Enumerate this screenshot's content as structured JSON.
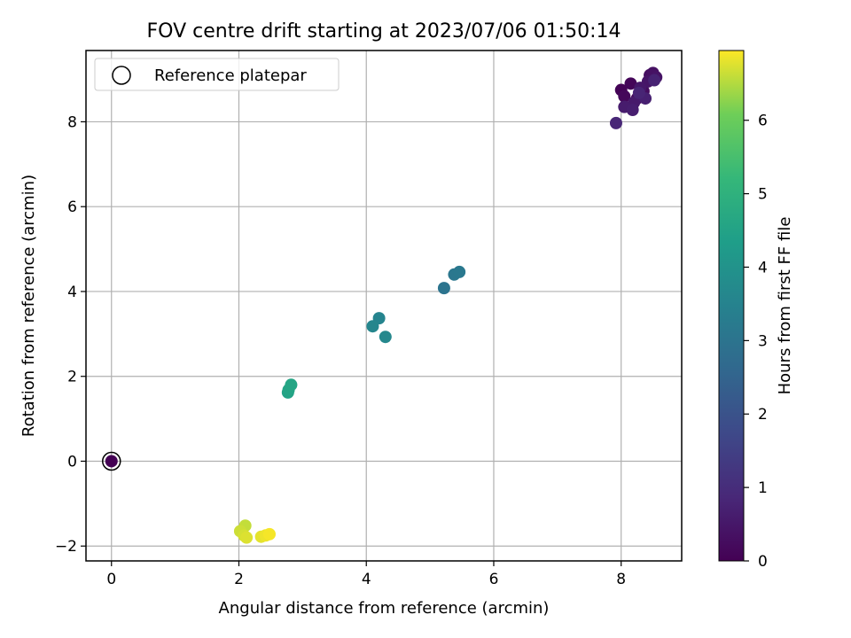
{
  "chart_data": {
    "type": "scatter",
    "title": "FOV centre drift starting at 2023/07/06 01:50:14",
    "xlabel": "Angular distance from reference (arcmin)",
    "ylabel": "Rotation from reference (arcmin)",
    "xlim": [
      -0.4,
      8.95
    ],
    "ylim": [
      -2.35,
      9.68
    ],
    "xticks": [
      0,
      2,
      4,
      6,
      8
    ],
    "yticks": [
      -2,
      0,
      2,
      4,
      6,
      8
    ],
    "grid": true,
    "legend": {
      "placement": "top-left",
      "entries": [
        "Reference platepar"
      ]
    },
    "reference_point": {
      "x": 0,
      "y": 0
    },
    "colorbar": {
      "label": "Hours from first FF file",
      "colormap": "viridis",
      "range": [
        0,
        6.95
      ],
      "ticks": [
        0,
        1,
        2,
        3,
        4,
        5,
        6
      ]
    },
    "points": [
      {
        "x": 0.0,
        "y": 0.0,
        "c": 0.0
      },
      {
        "x": 8.0,
        "y": 8.75,
        "c": 0.05
      },
      {
        "x": 8.15,
        "y": 8.9,
        "c": 0.1
      },
      {
        "x": 8.05,
        "y": 8.6,
        "c": 0.15
      },
      {
        "x": 8.25,
        "y": 8.55,
        "c": 0.2
      },
      {
        "x": 8.35,
        "y": 8.72,
        "c": 0.25
      },
      {
        "x": 8.45,
        "y": 9.1,
        "c": 0.3
      },
      {
        "x": 8.5,
        "y": 9.15,
        "c": 0.35
      },
      {
        "x": 8.55,
        "y": 9.05,
        "c": 0.4
      },
      {
        "x": 8.42,
        "y": 8.95,
        "c": 0.45
      },
      {
        "x": 8.3,
        "y": 8.8,
        "c": 0.5
      },
      {
        "x": 8.2,
        "y": 8.45,
        "c": 0.55
      },
      {
        "x": 8.05,
        "y": 8.35,
        "c": 0.6
      },
      {
        "x": 8.18,
        "y": 8.28,
        "c": 0.65
      },
      {
        "x": 8.38,
        "y": 8.55,
        "c": 0.7
      },
      {
        "x": 8.52,
        "y": 8.98,
        "c": 0.75
      },
      {
        "x": 8.28,
        "y": 8.68,
        "c": 0.8
      },
      {
        "x": 7.92,
        "y": 7.97,
        "c": 0.85
      },
      {
        "x": 5.22,
        "y": 4.08,
        "c": 3.0
      },
      {
        "x": 5.38,
        "y": 4.4,
        "c": 3.1
      },
      {
        "x": 5.46,
        "y": 4.46,
        "c": 3.15
      },
      {
        "x": 4.2,
        "y": 3.37,
        "c": 3.55
      },
      {
        "x": 4.1,
        "y": 3.18,
        "c": 3.6
      },
      {
        "x": 4.3,
        "y": 2.93,
        "c": 3.65
      },
      {
        "x": 2.77,
        "y": 1.62,
        "c": 4.5
      },
      {
        "x": 2.78,
        "y": 1.68,
        "c": 4.55
      },
      {
        "x": 2.82,
        "y": 1.8,
        "c": 4.6
      },
      {
        "x": 2.1,
        "y": -1.52,
        "c": 6.6
      },
      {
        "x": 2.02,
        "y": -1.65,
        "c": 6.65
      },
      {
        "x": 2.08,
        "y": -1.75,
        "c": 6.7
      },
      {
        "x": 2.12,
        "y": -1.8,
        "c": 6.75
      },
      {
        "x": 2.35,
        "y": -1.78,
        "c": 6.8
      },
      {
        "x": 2.42,
        "y": -1.75,
        "c": 6.85
      },
      {
        "x": 2.48,
        "y": -1.72,
        "c": 6.9
      }
    ]
  }
}
